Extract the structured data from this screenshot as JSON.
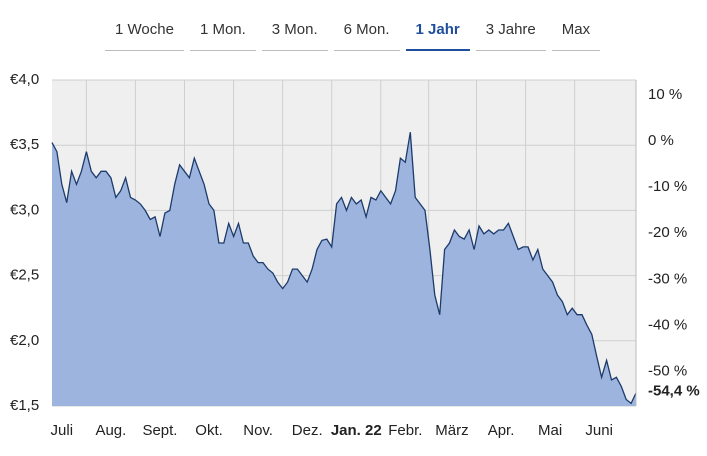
{
  "tabs": [
    "1 Woche",
    "1 Mon.",
    "3 Mon.",
    "6 Mon.",
    "1 Jahr",
    "3 Jahre",
    "Max"
  ],
  "active_tab": 4,
  "chart_data": {
    "type": "area",
    "xlim": [
      0,
      119
    ],
    "xticks": [
      {
        "value": 2,
        "label": "Juli"
      },
      {
        "value": 12,
        "label": "Aug."
      },
      {
        "value": 22,
        "label": "Sept."
      },
      {
        "value": 32,
        "label": "Okt."
      },
      {
        "value": 42,
        "label": "Nov."
      },
      {
        "value": 52,
        "label": "Dez."
      },
      {
        "value": 62,
        "label": "Jan. 22",
        "bold": true
      },
      {
        "value": 72,
        "label": "Febr."
      },
      {
        "value": 81.5,
        "label": "März"
      },
      {
        "value": 91.5,
        "label": "Apr."
      },
      {
        "value": 101.5,
        "label": "Mai"
      },
      {
        "value": 111.5,
        "label": "Juni"
      }
    ],
    "ylim": [
      1.5,
      4.0
    ],
    "yticks": [
      {
        "value": 4.0,
        "label": "€4,0"
      },
      {
        "value": 3.5,
        "label": "€3,5"
      },
      {
        "value": 3.0,
        "label": "€3,0"
      },
      {
        "value": 2.5,
        "label": "€2,5"
      },
      {
        "value": 2.0,
        "label": "€2,0"
      },
      {
        "value": 1.5,
        "label": "€1,5"
      }
    ],
    "y2lim": [
      -57.5,
      13.25
    ],
    "y2ticks": [
      {
        "value": 10,
        "label": "10 %"
      },
      {
        "value": 0,
        "label": "0 %"
      },
      {
        "value": -10,
        "label": "-10 %"
      },
      {
        "value": -20,
        "label": "-20 %"
      },
      {
        "value": -30,
        "label": "-30 %"
      },
      {
        "value": -40,
        "label": "-40 %"
      },
      {
        "value": -50,
        "label": "-50 %"
      }
    ],
    "last_change": {
      "value": -54.4,
      "label": "-54,4 %",
      "color": "#e0201b"
    },
    "grid": true,
    "color": "#9db5de",
    "line_color": "#1c3a6b",
    "values": [
      3.52,
      3.45,
      3.2,
      3.06,
      3.3,
      3.2,
      3.3,
      3.45,
      3.3,
      3.25,
      3.3,
      3.3,
      3.25,
      3.1,
      3.15,
      3.25,
      3.1,
      3.08,
      3.05,
      3.0,
      2.93,
      2.95,
      2.8,
      2.98,
      3.0,
      3.2,
      3.35,
      3.3,
      3.25,
      3.4,
      3.3,
      3.2,
      3.05,
      3.0,
      2.75,
      2.75,
      2.9,
      2.8,
      2.9,
      2.75,
      2.75,
      2.65,
      2.6,
      2.6,
      2.55,
      2.52,
      2.45,
      2.4,
      2.45,
      2.55,
      2.55,
      2.5,
      2.45,
      2.55,
      2.7,
      2.77,
      2.78,
      2.72,
      3.05,
      3.1,
      3.0,
      3.1,
      3.05,
      3.08,
      2.95,
      3.1,
      3.08,
      3.15,
      3.1,
      3.05,
      3.15,
      3.4,
      3.37,
      3.6,
      3.1,
      3.05,
      3.0,
      2.7,
      2.35,
      2.2,
      2.7,
      2.75,
      2.85,
      2.8,
      2.78,
      2.85,
      2.7,
      2.88,
      2.82,
      2.85,
      2.82,
      2.85,
      2.85,
      2.9,
      2.8,
      2.7,
      2.72,
      2.72,
      2.62,
      2.7,
      2.55,
      2.5,
      2.45,
      2.35,
      2.3,
      2.2,
      2.25,
      2.2,
      2.2,
      2.12,
      2.05,
      1.88,
      1.72,
      1.85,
      1.7,
      1.72,
      1.65,
      1.55,
      1.52,
      1.6
    ]
  }
}
